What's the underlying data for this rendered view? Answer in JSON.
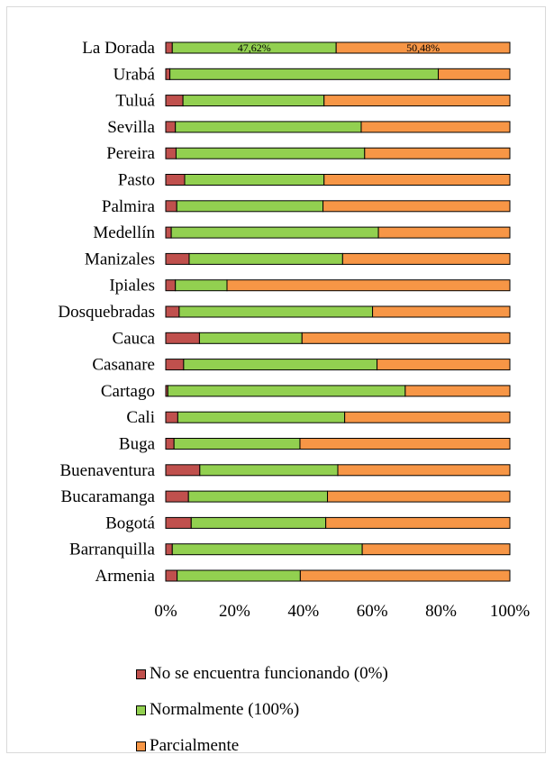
{
  "chart_data": {
    "type": "bar",
    "orientation": "horizontal",
    "stacked": "percent",
    "categories": [
      "La Dorada",
      "Urabá",
      "Tuluá",
      "Sevilla",
      "Pereira",
      "Pasto",
      "Palmira",
      "Medellín",
      "Manizales",
      "Ipiales",
      "Dosquebradas",
      "Cauca",
      "Casanare",
      "Cartago",
      "Cali",
      "Buga",
      "Buenaventura",
      "Bucaramanga",
      "Bogotá",
      "Barranquilla",
      "Armenia"
    ],
    "series": [
      {
        "name": "No se encuentra funcionando (0%)",
        "color": "#c0504d",
        "values": [
          1.9,
          1.2,
          5.0,
          2.8,
          3.0,
          5.5,
          3.2,
          1.6,
          6.8,
          2.8,
          3.9,
          9.8,
          5.2,
          0.6,
          3.5,
          2.4,
          9.9,
          6.6,
          7.4,
          1.9,
          3.3
        ]
      },
      {
        "name": "Normalmente (100%)",
        "color": "#92d050",
        "values": [
          47.62,
          78.0,
          41.0,
          54.0,
          54.8,
          40.5,
          42.5,
          60.2,
          44.6,
          15.0,
          56.2,
          29.8,
          56.2,
          69.0,
          48.5,
          36.6,
          40.1,
          40.4,
          39.1,
          55.2,
          35.8
        ]
      },
      {
        "name": "Parcialmente",
        "color": "#f79646",
        "values": [
          50.48,
          20.8,
          54.0,
          43.2,
          42.2,
          54.0,
          54.3,
          38.2,
          48.6,
          82.2,
          39.9,
          60.4,
          38.6,
          30.4,
          48.0,
          61.0,
          50.0,
          53.0,
          53.5,
          42.9,
          60.9
        ]
      }
    ],
    "data_labels": [
      {
        "category": "La Dorada",
        "series": "Normalmente (100%)",
        "text": "47,62%"
      },
      {
        "category": "La Dorada",
        "series": "Parcialmente",
        "text": "50,48%"
      }
    ],
    "xaxis": {
      "min": 0,
      "max": 100,
      "ticks": [
        "0%",
        "20%",
        "40%",
        "60%",
        "80%",
        "100%"
      ]
    },
    "title": "",
    "legend_position": "bottom",
    "grid": false
  }
}
